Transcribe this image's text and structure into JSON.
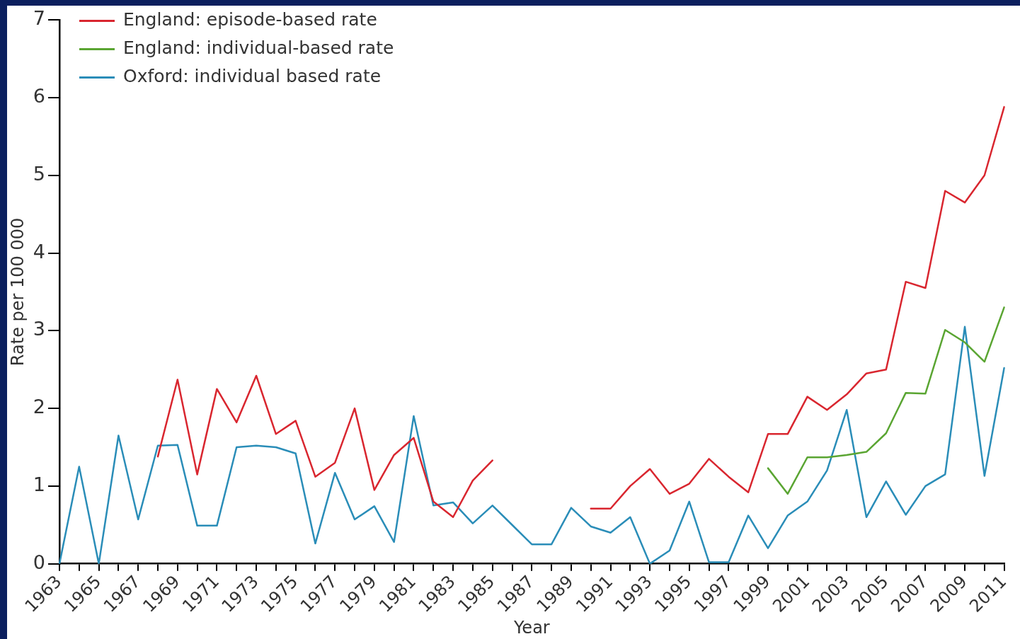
{
  "chart_data": {
    "type": "line",
    "xlabel": "Year",
    "ylabel": "Rate per 100 000",
    "categories": [
      "1963",
      null,
      "1965",
      null,
      "1967",
      null,
      "1969",
      null,
      "1971",
      null,
      "1973",
      null,
      "1975",
      null,
      "1977",
      null,
      "1979",
      null,
      "1981",
      null,
      "1983",
      null,
      "1985",
      null,
      "1987",
      null,
      "1989",
      null,
      "1991",
      null,
      "1993",
      null,
      "1995",
      null,
      "1997",
      null,
      "1999",
      null,
      "2001",
      null,
      "2003",
      null,
      "2005",
      null,
      "2007",
      null,
      "2009",
      null,
      "2011"
    ],
    "ylim": [
      0,
      7
    ],
    "yticks": [
      0,
      1,
      2,
      3,
      4,
      5,
      6,
      7
    ],
    "grid": false,
    "legend": "top left",
    "marker": "none",
    "line_style": "solid",
    "series": [
      {
        "name": "England: episode-based rate",
        "color": "#d9262f",
        "values": [
          null,
          null,
          null,
          null,
          null,
          1.38,
          2.37,
          1.15,
          2.25,
          1.82,
          2.42,
          1.67,
          1.84,
          1.12,
          1.3,
          2.0,
          0.95,
          1.4,
          1.62,
          0.8,
          0.6,
          1.07,
          1.33,
          null,
          null,
          null,
          null,
          0.71,
          0.71,
          1.0,
          1.22,
          0.9,
          1.03,
          1.35,
          1.12,
          0.92,
          1.67,
          1.67,
          2.15,
          1.98,
          2.18,
          2.45,
          2.5,
          3.63,
          3.55,
          4.8,
          4.65,
          5.0,
          5.88
        ]
      },
      {
        "name": "England: individual-based rate",
        "color": "#5aa532",
        "values": [
          null,
          null,
          null,
          null,
          null,
          null,
          null,
          null,
          null,
          null,
          null,
          null,
          null,
          null,
          null,
          null,
          null,
          null,
          null,
          null,
          null,
          null,
          null,
          null,
          null,
          null,
          null,
          null,
          null,
          null,
          null,
          null,
          null,
          null,
          null,
          null,
          1.23,
          0.9,
          1.37,
          1.37,
          1.4,
          1.44,
          1.68,
          2.2,
          2.19,
          3.01,
          2.85,
          2.6,
          3.3
        ]
      },
      {
        "name": "Oxford: individual based rate",
        "color": "#2a8db8",
        "values": [
          0,
          1.25,
          0,
          1.65,
          0.57,
          1.52,
          1.53,
          0.49,
          0.49,
          1.5,
          1.52,
          1.5,
          1.42,
          0.26,
          1.17,
          0.57,
          0.74,
          0.28,
          1.9,
          0.75,
          0.79,
          0.52,
          0.75,
          0.5,
          0.25,
          0.25,
          0.72,
          0.48,
          0.4,
          0.6,
          0,
          0.17,
          0.8,
          0.02,
          0.02,
          0.62,
          0.2,
          0.62,
          0.8,
          1.2,
          1.98,
          0.6,
          1.06,
          0.63,
          1.0,
          1.15,
          3.05,
          1.13,
          2.52
        ]
      }
    ]
  }
}
